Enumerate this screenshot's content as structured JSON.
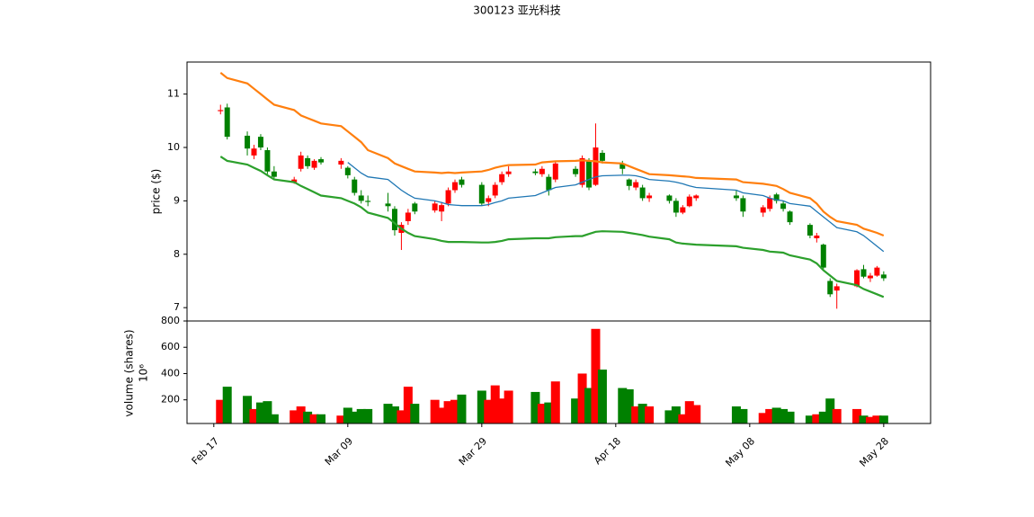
{
  "chart_data": {
    "type": "candlestick",
    "title": "300123   亚光科技",
    "y_label": "price ($)",
    "volume_label": "volume (shares)",
    "volume_unit": "10⁶",
    "up_color": "#ff0000",
    "down_color": "#008000",
    "x": [
      "Feb 18",
      "Feb 19",
      "Feb 22",
      "Feb 23",
      "Feb 24",
      "Feb 25",
      "Feb 26",
      "Mar 01",
      "Mar 02",
      "Mar 03",
      "Mar 04",
      "Mar 05",
      "Mar 08",
      "Mar 09",
      "Mar 10",
      "Mar 11",
      "Mar 12",
      "Mar 15",
      "Mar 16",
      "Mar 17",
      "Mar 18",
      "Mar 19",
      "Mar 22",
      "Mar 23",
      "Mar 24",
      "Mar 25",
      "Mar 26",
      "Mar 29",
      "Mar 30",
      "Mar 31",
      "Apr 01",
      "Apr 02",
      "Apr 06",
      "Apr 07",
      "Apr 08",
      "Apr 09",
      "Apr 12",
      "Apr 13",
      "Apr 14",
      "Apr 15",
      "Apr 16",
      "Apr 19",
      "Apr 20",
      "Apr 21",
      "Apr 22",
      "Apr 23",
      "Apr 26",
      "Apr 27",
      "Apr 28",
      "Apr 29",
      "Apr 30",
      "May 06",
      "May 07",
      "May 10",
      "May 11",
      "May 12",
      "May 13",
      "May 14",
      "May 17",
      "May 18",
      "May 19",
      "May 20",
      "May 21",
      "May 24",
      "May 25",
      "May 26",
      "May 27",
      "May 28"
    ],
    "open": [
      10.68,
      10.75,
      10.22,
      9.85,
      10.2,
      9.95,
      9.55,
      9.35,
      9.6,
      9.8,
      9.62,
      9.78,
      9.68,
      9.62,
      9.4,
      9.1,
      9.0,
      8.95,
      8.85,
      8.4,
      8.62,
      8.95,
      8.82,
      8.8,
      8.95,
      9.2,
      9.4,
      9.3,
      8.98,
      9.1,
      9.35,
      9.5,
      9.55,
      9.5,
      9.45,
      9.4,
      9.6,
      9.3,
      9.75,
      9.3,
      9.9,
      9.7,
      9.4,
      9.25,
      9.25,
      9.05,
      9.1,
      9.0,
      8.78,
      8.9,
      9.05,
      9.1,
      9.05,
      8.78,
      8.85,
      9.12,
      8.95,
      8.8,
      8.55,
      8.3,
      8.18,
      7.5,
      7.32,
      7.4,
      7.72,
      7.55,
      7.6,
      7.62
    ],
    "high": [
      10.8,
      10.82,
      10.3,
      10.05,
      10.25,
      10.0,
      9.65,
      9.45,
      9.92,
      9.85,
      9.78,
      9.82,
      9.8,
      9.65,
      9.45,
      9.2,
      9.1,
      9.15,
      8.9,
      8.6,
      8.85,
      8.98,
      9.0,
      8.98,
      9.25,
      9.4,
      9.45,
      9.35,
      9.1,
      9.35,
      9.55,
      9.65,
      9.6,
      9.65,
      9.5,
      9.75,
      9.65,
      9.85,
      9.8,
      10.45,
      9.95,
      9.75,
      9.42,
      9.4,
      9.3,
      9.15,
      9.12,
      9.05,
      8.92,
      9.12,
      9.12,
      9.2,
      9.1,
      8.92,
      9.1,
      9.15,
      9.0,
      8.82,
      8.58,
      8.4,
      8.2,
      7.55,
      7.45,
      7.72,
      7.8,
      7.65,
      7.78,
      7.68
    ],
    "low": [
      10.62,
      10.15,
      9.85,
      9.78,
      9.95,
      9.5,
      9.4,
      9.32,
      9.55,
      9.6,
      9.58,
      9.68,
      9.6,
      9.42,
      9.1,
      8.95,
      8.9,
      8.8,
      8.35,
      8.08,
      8.55,
      8.75,
      8.78,
      8.62,
      8.9,
      9.15,
      9.25,
      8.92,
      8.9,
      9.05,
      9.3,
      9.45,
      9.48,
      9.45,
      9.1,
      9.35,
      9.45,
      9.25,
      9.2,
      9.28,
      9.7,
      9.5,
      9.2,
      9.2,
      9.0,
      8.98,
      8.95,
      8.7,
      8.75,
      8.88,
      9.0,
      9.0,
      8.7,
      8.7,
      8.8,
      8.95,
      8.8,
      8.55,
      8.3,
      8.22,
      7.72,
      7.2,
      6.98,
      7.38,
      7.55,
      7.48,
      7.58,
      7.5
    ],
    "close": [
      10.7,
      10.2,
      9.98,
      9.98,
      10.0,
      9.55,
      9.45,
      9.4,
      9.85,
      9.65,
      9.75,
      9.72,
      9.75,
      9.48,
      9.15,
      9.0,
      8.98,
      8.9,
      8.45,
      8.55,
      8.78,
      8.8,
      8.95,
      8.92,
      9.2,
      9.35,
      9.3,
      8.95,
      9.05,
      9.3,
      9.5,
      9.55,
      9.52,
      9.6,
      9.2,
      9.7,
      9.5,
      9.8,
      9.25,
      10.0,
      9.75,
      9.6,
      9.28,
      9.35,
      9.05,
      9.1,
      9.0,
      8.78,
      8.88,
      9.08,
      9.1,
      9.05,
      8.8,
      8.88,
      9.05,
      9.0,
      8.85,
      8.6,
      8.35,
      8.35,
      7.75,
      7.25,
      7.4,
      7.7,
      7.58,
      7.6,
      7.75,
      7.55
    ],
    "volume": [
      200,
      300,
      230,
      130,
      180,
      190,
      90,
      120,
      150,
      110,
      90,
      90,
      80,
      140,
      110,
      130,
      130,
      170,
      150,
      120,
      300,
      170,
      200,
      140,
      190,
      200,
      240,
      270,
      200,
      310,
      210,
      270,
      260,
      170,
      180,
      340,
      210,
      400,
      290,
      740,
      430,
      290,
      280,
      150,
      170,
      150,
      120,
      150,
      90,
      190,
      160,
      150,
      130,
      100,
      130,
      140,
      130,
      110,
      80,
      90,
      110,
      210,
      130,
      130,
      80,
      70,
      80,
      80
    ],
    "lines": [
      {
        "color": "#1f77b4",
        "values": [
          null,
          null,
          null,
          null,
          null,
          null,
          null,
          null,
          null,
          null,
          null,
          null,
          null,
          9.72,
          9.62,
          9.52,
          9.45,
          9.4,
          9.3,
          9.2,
          9.12,
          9.05,
          9.0,
          8.97,
          8.93,
          8.92,
          8.91,
          8.91,
          8.93,
          8.97,
          9.0,
          9.05,
          9.1,
          9.15,
          9.2,
          9.25,
          9.3,
          9.35,
          9.4,
          9.45,
          9.47,
          9.48,
          9.48,
          9.47,
          9.44,
          9.4,
          9.37,
          9.35,
          9.32,
          9.28,
          9.25,
          9.2,
          9.15,
          9.1,
          9.05,
          9.02,
          9.0,
          8.95,
          8.9,
          8.8,
          8.7,
          8.6,
          8.5,
          8.42,
          8.35,
          8.25,
          8.15,
          8.05
        ]
      },
      {
        "color": "#ff7f0e",
        "values": [
          11.4,
          11.3,
          11.2,
          11.1,
          11.0,
          10.9,
          10.8,
          10.7,
          10.6,
          10.55,
          10.5,
          10.45,
          10.4,
          10.3,
          10.2,
          10.1,
          9.95,
          9.8,
          9.7,
          9.65,
          9.6,
          9.55,
          9.53,
          9.52,
          9.53,
          9.52,
          9.53,
          9.55,
          9.58,
          9.62,
          9.65,
          9.67,
          9.68,
          9.72,
          9.73,
          9.74,
          9.75,
          9.76,
          9.75,
          9.74,
          9.72,
          9.7,
          9.65,
          9.6,
          9.55,
          9.5,
          9.48,
          9.47,
          9.46,
          9.45,
          9.43,
          9.4,
          9.35,
          9.32,
          9.3,
          9.28,
          9.22,
          9.15,
          9.05,
          8.95,
          8.8,
          8.7,
          8.62,
          8.55,
          8.48,
          8.44,
          8.4,
          8.35
        ]
      },
      {
        "color": "#2ca02c",
        "values": [
          9.83,
          9.75,
          9.68,
          9.62,
          9.56,
          9.48,
          9.4,
          9.35,
          9.28,
          9.22,
          9.16,
          9.1,
          9.05,
          9.0,
          8.95,
          8.88,
          8.78,
          8.68,
          8.58,
          8.48,
          8.4,
          8.34,
          8.28,
          8.25,
          8.23,
          8.23,
          8.23,
          8.22,
          8.22,
          8.23,
          8.25,
          8.28,
          8.3,
          8.3,
          8.3,
          8.32,
          8.34,
          8.34,
          8.38,
          8.42,
          8.43,
          8.42,
          8.4,
          8.38,
          8.36,
          8.33,
          8.28,
          8.22,
          8.2,
          8.19,
          8.18,
          8.15,
          8.12,
          8.08,
          8.05,
          8.04,
          8.03,
          7.98,
          7.9,
          7.83,
          7.7,
          7.6,
          7.5,
          7.42,
          7.35,
          7.3,
          7.25,
          7.2
        ]
      }
    ],
    "xlim": [
      "Feb 13",
      "Jun 04"
    ],
    "xticks": [
      "Feb 17",
      "Mar 09",
      "Mar 29",
      "Apr 18",
      "May 08",
      "May 28"
    ],
    "ylim": [
      6.75,
      11.6
    ],
    "yticks": [
      7,
      8,
      9,
      10,
      11
    ],
    "volume_ylim": [
      20,
      800
    ],
    "volume_yticks": [
      200,
      400,
      600,
      800
    ]
  }
}
